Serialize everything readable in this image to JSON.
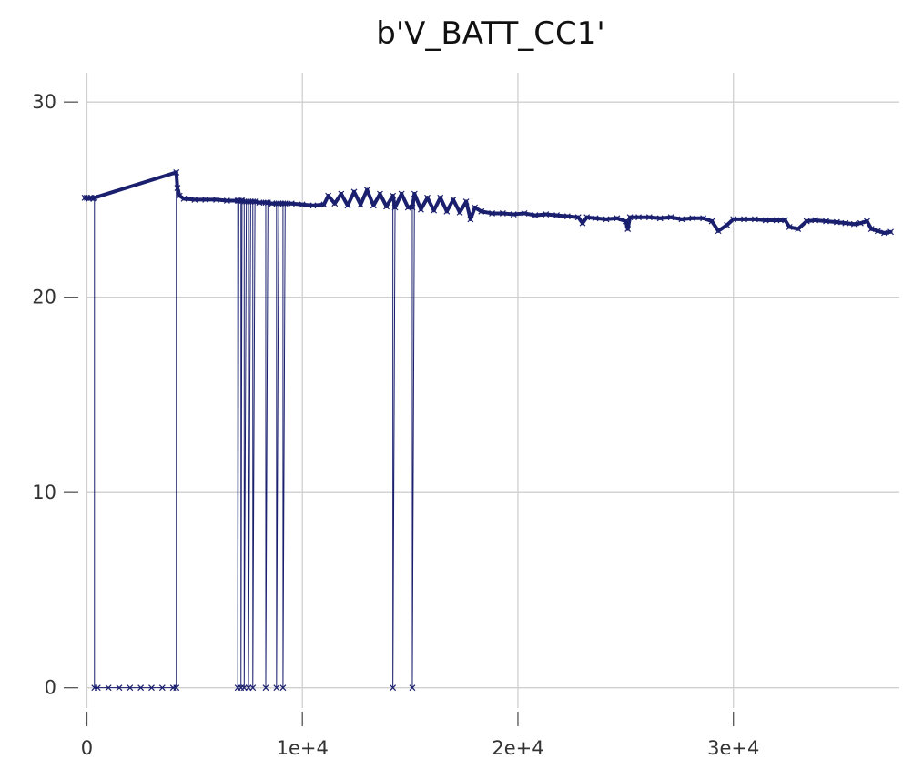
{
  "chart_data": {
    "type": "line",
    "title": "b'V_BATT_CC1'",
    "xlabel": "",
    "ylabel": "",
    "xlim": [
      -400,
      37700
    ],
    "ylim": [
      -1.6,
      31.5
    ],
    "x_ticks": [
      {
        "value": 0,
        "label": "0"
      },
      {
        "value": 10000,
        "label": "1e+4"
      },
      {
        "value": 20000,
        "label": "2e+4"
      },
      {
        "value": 30000,
        "label": "3e+4"
      }
    ],
    "y_ticks": [
      {
        "value": 0,
        "label": "0"
      },
      {
        "value": 10,
        "label": "10"
      },
      {
        "value": 20,
        "label": "20"
      },
      {
        "value": 30,
        "label": "30"
      }
    ],
    "grid": true,
    "legend": "none",
    "series": [
      {
        "color": "#1a1f6e",
        "marker": "x",
        "points": [
          [
            -100,
            25.1
          ],
          [
            0,
            25.1
          ],
          [
            100,
            25.05
          ],
          [
            200,
            25.1
          ],
          [
            300,
            25.05
          ],
          [
            350,
            25.1
          ],
          [
            350,
            0
          ],
          [
            500,
            0
          ],
          [
            1000,
            0
          ],
          [
            1500,
            0
          ],
          [
            2000,
            0
          ],
          [
            2500,
            0
          ],
          [
            3000,
            0
          ],
          [
            3500,
            0
          ],
          [
            4000,
            0
          ],
          [
            4150,
            0
          ],
          [
            4150,
            26.4
          ],
          [
            4200,
            25.6
          ],
          [
            4300,
            25.2
          ],
          [
            4500,
            25.05
          ],
          [
            5000,
            25.0
          ],
          [
            5500,
            25.0
          ],
          [
            6000,
            25.0
          ],
          [
            6500,
            24.95
          ],
          [
            7000,
            24.95
          ],
          [
            7000,
            0
          ],
          [
            7050,
            24.95
          ],
          [
            7150,
            24.95
          ],
          [
            7150,
            0
          ],
          [
            7200,
            24.95
          ],
          [
            7300,
            24.9
          ],
          [
            7300,
            0
          ],
          [
            7400,
            24.9
          ],
          [
            7500,
            24.9
          ],
          [
            7500,
            0
          ],
          [
            7600,
            24.9
          ],
          [
            7700,
            24.9
          ],
          [
            7700,
            0
          ],
          [
            7800,
            24.9
          ],
          [
            8000,
            24.85
          ],
          [
            8300,
            24.85
          ],
          [
            8300,
            0
          ],
          [
            8400,
            24.85
          ],
          [
            8600,
            24.8
          ],
          [
            8800,
            24.8
          ],
          [
            8800,
            0
          ],
          [
            8900,
            24.8
          ],
          [
            9000,
            24.8
          ],
          [
            9100,
            24.8
          ],
          [
            9100,
            0
          ],
          [
            9200,
            24.8
          ],
          [
            9500,
            24.8
          ],
          [
            10000,
            24.75
          ],
          [
            10500,
            24.7
          ],
          [
            11000,
            24.75
          ],
          [
            11200,
            25.2
          ],
          [
            11500,
            24.8
          ],
          [
            11800,
            25.3
          ],
          [
            12100,
            24.7
          ],
          [
            12400,
            25.4
          ],
          [
            12700,
            24.75
          ],
          [
            13000,
            25.5
          ],
          [
            13300,
            24.7
          ],
          [
            13600,
            25.3
          ],
          [
            13900,
            24.65
          ],
          [
            14200,
            25.2
          ],
          [
            14200,
            0
          ],
          [
            14300,
            24.6
          ],
          [
            14600,
            25.3
          ],
          [
            14900,
            24.6
          ],
          [
            15100,
            24.6
          ],
          [
            15100,
            0
          ],
          [
            15200,
            25.3
          ],
          [
            15500,
            24.5
          ],
          [
            15800,
            25.1
          ],
          [
            16100,
            24.45
          ],
          [
            16400,
            25.1
          ],
          [
            16700,
            24.4
          ],
          [
            17000,
            25.0
          ],
          [
            17300,
            24.35
          ],
          [
            17600,
            24.9
          ],
          [
            17800,
            24.0
          ],
          [
            18000,
            24.6
          ],
          [
            18300,
            24.4
          ],
          [
            18800,
            24.3
          ],
          [
            19300,
            24.3
          ],
          [
            19800,
            24.25
          ],
          [
            20300,
            24.3
          ],
          [
            20800,
            24.2
          ],
          [
            21300,
            24.25
          ],
          [
            21800,
            24.2
          ],
          [
            22300,
            24.15
          ],
          [
            22800,
            24.1
          ],
          [
            23000,
            23.8
          ],
          [
            23200,
            24.1
          ],
          [
            23600,
            24.05
          ],
          [
            24100,
            24.0
          ],
          [
            24600,
            24.05
          ],
          [
            25000,
            23.9
          ],
          [
            25100,
            23.5
          ],
          [
            25200,
            24.1
          ],
          [
            25600,
            24.1
          ],
          [
            26100,
            24.1
          ],
          [
            26600,
            24.05
          ],
          [
            27100,
            24.1
          ],
          [
            27600,
            24.0
          ],
          [
            28100,
            24.05
          ],
          [
            28600,
            24.05
          ],
          [
            29000,
            23.9
          ],
          [
            29300,
            23.4
          ],
          [
            29700,
            23.7
          ],
          [
            30000,
            24.0
          ],
          [
            30500,
            24.0
          ],
          [
            31000,
            24.0
          ],
          [
            31500,
            23.95
          ],
          [
            32000,
            23.95
          ],
          [
            32400,
            23.95
          ],
          [
            32600,
            23.6
          ],
          [
            33000,
            23.5
          ],
          [
            33400,
            23.9
          ],
          [
            33800,
            23.95
          ],
          [
            34300,
            23.9
          ],
          [
            34800,
            23.85
          ],
          [
            35200,
            23.8
          ],
          [
            35600,
            23.75
          ],
          [
            35900,
            23.8
          ],
          [
            36200,
            23.9
          ],
          [
            36400,
            23.5
          ],
          [
            36700,
            23.4
          ],
          [
            37000,
            23.3
          ],
          [
            37300,
            23.35
          ]
        ]
      }
    ]
  }
}
